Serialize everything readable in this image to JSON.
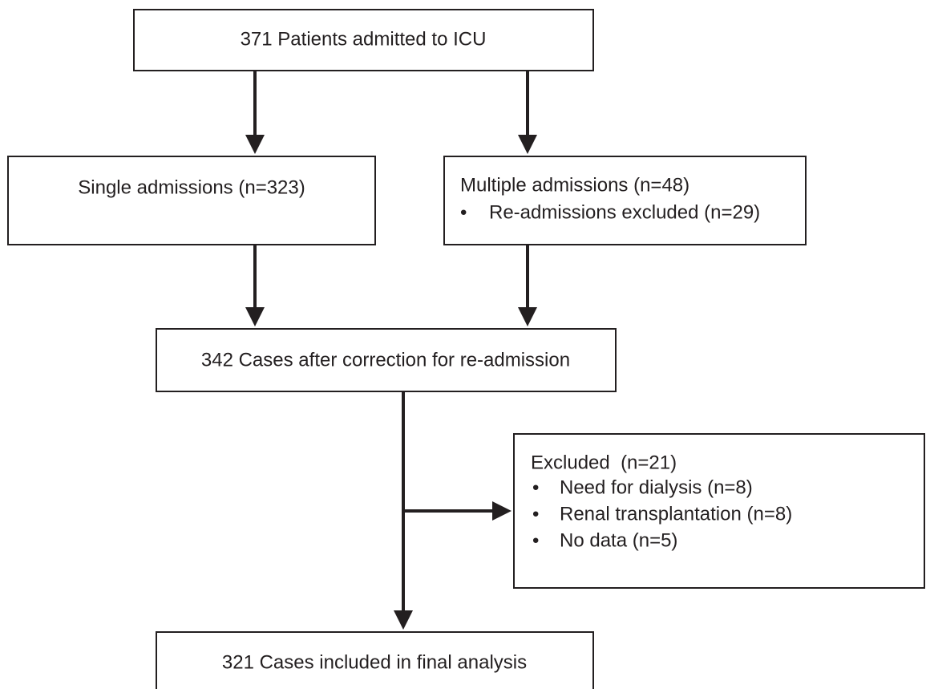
{
  "nodes": [
    {
      "label": "371 Patients admitted to ICU"
    },
    {
      "label": "Single admissions (n=323)"
    },
    {
      "label": "Multiple admissions (n=48)",
      "items": [
        "Re-admissions excluded (n=29)"
      ]
    },
    {
      "label": "342 Cases after correction for re-admission"
    },
    {
      "label": "Excluded  (n=21)",
      "items": [
        "Need for dialysis (n=8)",
        "Renal transplantation (n=8)",
        "No data (n=5)"
      ]
    },
    {
      "label": "321 Cases included in final analysis"
    }
  ]
}
